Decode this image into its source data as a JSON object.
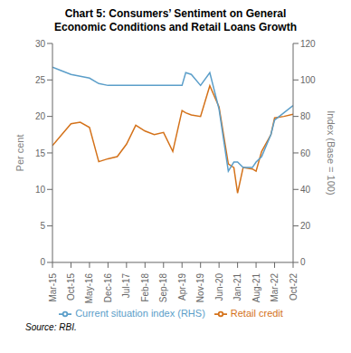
{
  "chart_data": {
    "type": "line",
    "title": "Chart 5: Consumers’ Sentiment on General\nEconomic Conditions and Retail Loans Growth",
    "ylabel": "Per cent",
    "y2label": "Index (Base = 100)",
    "source": "Source: RBI.",
    "x": [
      0,
      0.5,
      1,
      1.5,
      2,
      2.5,
      3,
      3.5,
      4,
      4.5,
      5,
      5.5,
      6,
      6.5,
      7,
      7.2,
      7.5,
      8,
      8.5,
      9,
      9.5,
      9.8,
      10,
      10.3,
      10.8,
      11,
      11.3,
      11.8,
      12,
      12.5,
      13
    ],
    "xlim": [
      0,
      13
    ],
    "xticks": [
      {
        "value": 0,
        "label": "Mar-15"
      },
      {
        "value": 1,
        "label": "Oct-15"
      },
      {
        "value": 2,
        "label": "May-16"
      },
      {
        "value": 3,
        "label": "Dec-16"
      },
      {
        "value": 4,
        "label": "Jul-17"
      },
      {
        "value": 5,
        "label": "Feb-18"
      },
      {
        "value": 6,
        "label": "Sep-18"
      },
      {
        "value": 7,
        "label": "Apr-19"
      },
      {
        "value": 8,
        "label": "Nov-19"
      },
      {
        "value": 9,
        "label": "Jun-20"
      },
      {
        "value": 10,
        "label": "Jan-21"
      },
      {
        "value": 11,
        "label": "Aug-21"
      },
      {
        "value": 12,
        "label": "Mar-22"
      },
      {
        "value": 13,
        "label": "Oct-22"
      }
    ],
    "ylim": [
      0,
      30
    ],
    "yticks": [
      0,
      5,
      10,
      15,
      20,
      25,
      30
    ],
    "y2lim": [
      0,
      120
    ],
    "y2ticks": [
      0,
      20,
      40,
      60,
      80,
      100,
      120
    ],
    "series": [
      {
        "name": "Retail credit",
        "color": "#D4721A",
        "values": [
          16.0,
          17.5,
          19.0,
          19.2,
          18.5,
          13.8,
          14.2,
          14.5,
          16.2,
          18.8,
          18.0,
          17.5,
          17.8,
          15.2,
          20.8,
          20.5,
          20.2,
          20.0,
          24.2,
          21.3,
          13.5,
          13.0,
          9.5,
          13.0,
          12.8,
          12.5,
          15.2,
          17.5,
          19.8,
          20.0,
          20.3
        ]
      },
      {
        "name": "Current situation index (RHS)",
        "color": "#5B9EC9",
        "axis": "y2",
        "values": [
          107,
          105,
          103,
          102,
          101,
          98,
          97,
          97,
          97,
          97,
          97,
          97,
          97,
          97,
          97,
          104,
          103,
          97,
          104,
          84,
          50,
          55,
          55,
          52,
          52,
          55,
          58,
          70,
          78,
          82,
          86
        ]
      }
    ],
    "grid": false,
    "legend": "bottom"
  }
}
